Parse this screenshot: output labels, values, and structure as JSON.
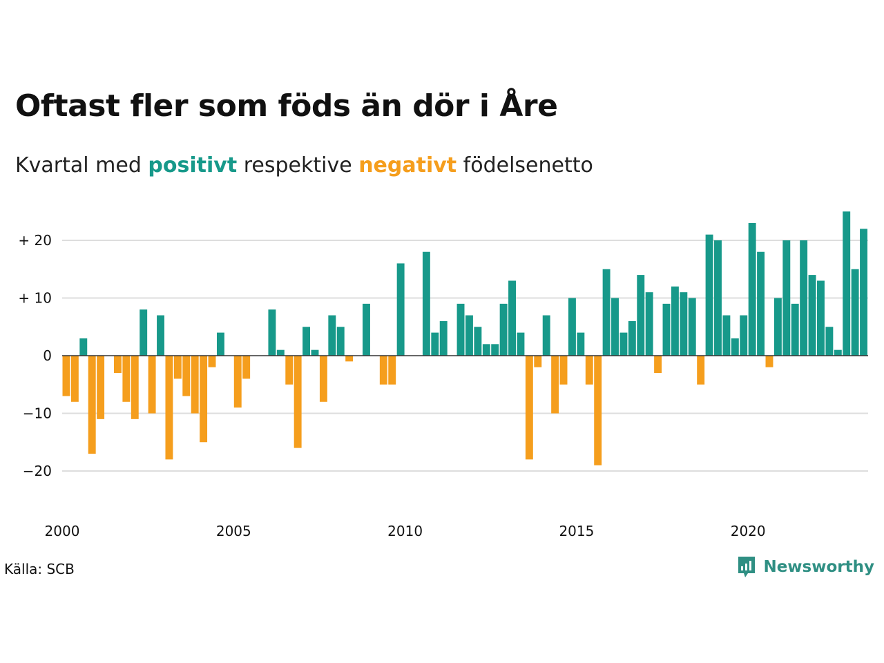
{
  "header": {
    "title": "Oftast fler som föds än dör i Åre",
    "subtitle_pre": "Kvartal med ",
    "subtitle_pos": "positivt",
    "subtitle_mid": " respektive ",
    "subtitle_neg": "negativt",
    "subtitle_post": " födelsenetto"
  },
  "footer": {
    "source": "Källa: SCB",
    "brand": "Newsworthy",
    "brand_icon": "newsworthy-logo-icon"
  },
  "colors": {
    "positive": "#17998a",
    "negative": "#f59e1d",
    "grid": "#dddddd",
    "baseline": "#333333"
  },
  "chart_data": {
    "type": "bar",
    "title": "",
    "xlabel": "",
    "ylabel": "",
    "ylim": [
      -27,
      27
    ],
    "grid": true,
    "yticks": [
      20,
      10,
      0,
      -10,
      -20
    ],
    "ytick_labels": [
      "+ 20",
      "+ 10",
      "0",
      "−10",
      "−20"
    ],
    "xticks": [
      2000,
      2005,
      2010,
      2015,
      2020
    ],
    "start_year": 2000,
    "periods_per_year": 4,
    "values": [
      -7,
      -8,
      3,
      -17,
      -11,
      0,
      -3,
      -8,
      -11,
      8,
      -10,
      7,
      -18,
      -4,
      -7,
      -10,
      -15,
      -2,
      4,
      0,
      -9,
      -4,
      0,
      0,
      8,
      1,
      -5,
      -16,
      5,
      1,
      -8,
      7,
      5,
      -1,
      0,
      9,
      0,
      -5,
      -5,
      16,
      0,
      0,
      18,
      4,
      6,
      0,
      9,
      7,
      5,
      2,
      2,
      9,
      13,
      4,
      -18,
      -2,
      7,
      -10,
      -5,
      10,
      4,
      -5,
      -19,
      15,
      10,
      4,
      6,
      14,
      11,
      -3,
      9,
      12,
      11,
      10,
      -5,
      21,
      20,
      7,
      3,
      7,
      23,
      18,
      -2,
      10,
      20,
      9,
      20,
      14,
      13,
      5,
      1,
      25,
      15,
      22
    ]
  }
}
